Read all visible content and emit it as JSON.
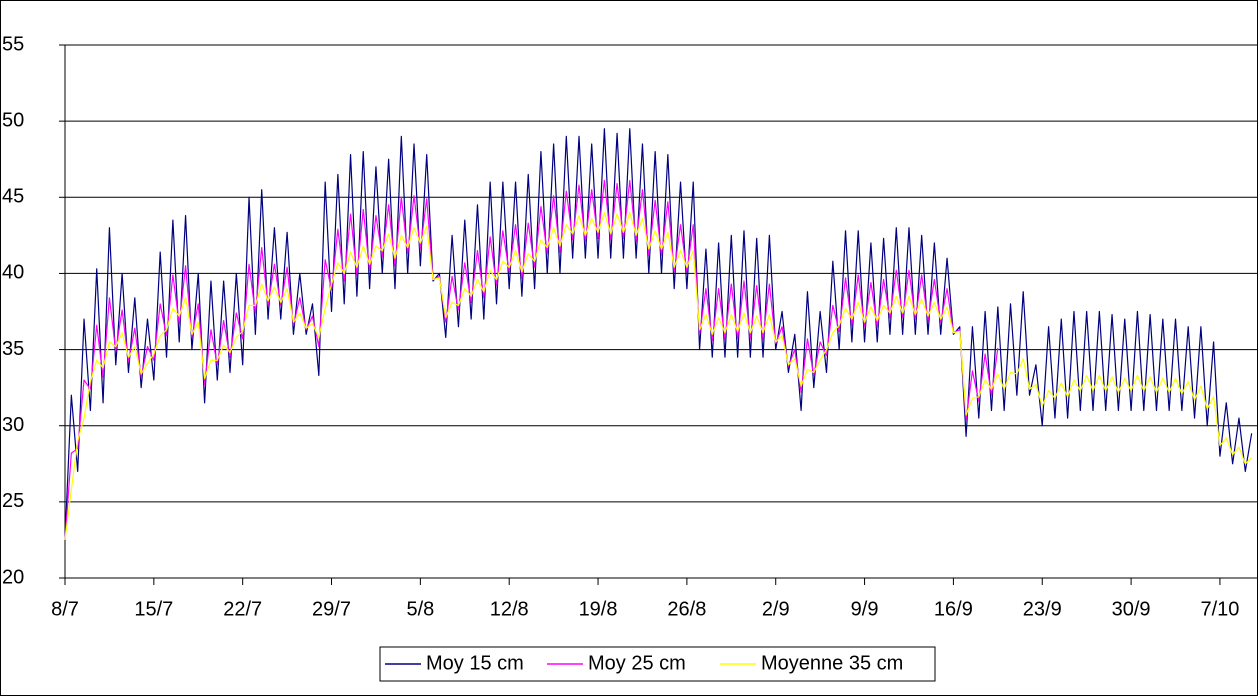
{
  "chart_data": {
    "type": "line",
    "x": [
      0,
      0.5,
      1,
      1.5,
      2,
      2.5,
      3,
      3.5,
      4,
      4.5,
      5,
      5.5,
      6,
      6.5,
      7,
      7.5,
      8,
      8.5,
      9,
      9.5,
      10,
      10.5,
      11,
      11.5,
      12,
      12.5,
      13,
      13.5,
      14,
      14.5,
      15,
      15.5,
      16,
      16.5,
      17,
      17.5,
      18,
      18.5,
      19,
      19.5,
      20,
      20.5,
      21,
      21.5,
      22,
      22.5,
      23,
      23.5,
      24,
      24.5,
      25,
      25.5,
      26,
      26.5,
      27,
      27.5,
      28,
      28.5,
      29,
      29.5,
      30,
      30.5,
      31,
      31.5,
      32,
      32.5,
      33,
      33.5,
      34,
      34.5,
      35,
      35.5,
      36,
      36.5,
      37,
      37.5,
      38,
      38.5,
      39,
      39.5,
      40,
      40.5,
      41,
      41.5,
      42,
      42.5,
      43,
      43.5,
      44,
      44.5,
      45,
      45.5,
      46,
      46.5,
      47,
      47.5,
      48,
      48.5,
      49,
      49.5,
      50,
      50.5,
      51,
      51.5,
      52,
      52.5,
      53,
      53.5,
      54,
      54.5,
      55,
      55.5,
      56,
      56.5,
      57,
      57.5,
      58,
      58.5,
      59,
      59.5,
      60,
      60.5,
      61,
      61.5,
      62,
      62.5,
      63,
      63.5,
      64,
      64.5,
      65,
      65.5,
      66,
      66.5,
      67,
      67.5,
      68,
      68.5,
      69,
      69.5,
      70,
      70.5,
      71,
      71.5,
      72,
      72.5,
      73,
      73.5,
      74,
      74.5,
      75,
      75.5,
      76,
      76.5,
      77,
      77.5,
      78,
      78.5,
      79,
      79.5,
      80,
      80.5,
      81,
      81.5,
      82,
      82.5,
      83,
      83.5,
      84,
      84.5,
      85,
      85.5,
      86,
      86.5,
      87,
      87.5,
      88,
      88.5,
      89,
      89.5,
      90,
      90.5,
      91,
      91.5,
      92,
      92.5,
      93,
      93.5
    ],
    "series": [
      {
        "name": "Moy 15 cm",
        "color": "#000080",
        "values": [
          22.5,
          32,
          27,
          37,
          31,
          40.3,
          31.5,
          43,
          34,
          40,
          33.5,
          38.4,
          32.5,
          37,
          33,
          41.4,
          34.5,
          43.5,
          35.5,
          43.8,
          35,
          40,
          31.5,
          39.5,
          33,
          39.5,
          33.5,
          40,
          34,
          45,
          36,
          45.5,
          37,
          43,
          37,
          42.7,
          36,
          40,
          36,
          38,
          33.3,
          46,
          37.5,
          46.5,
          38,
          47.8,
          38.5,
          48,
          39,
          47,
          40,
          47.5,
          39,
          49,
          40,
          48.5,
          40.5,
          47.8,
          39.5,
          40,
          35.8,
          42.5,
          36.5,
          43.5,
          37,
          44.5,
          37,
          46,
          38,
          46,
          39,
          46,
          38.5,
          46.5,
          39,
          48,
          40,
          48.5,
          40,
          49,
          41,
          49,
          41,
          48.5,
          41,
          49.5,
          41,
          49.2,
          41,
          49.5,
          41,
          48.5,
          40,
          48,
          40,
          47.8,
          39,
          46,
          39,
          46,
          35,
          41.6,
          34.5,
          42,
          34.5,
          42.5,
          34.5,
          42.8,
          34.5,
          42.3,
          34.5,
          42.5,
          35,
          37.5,
          33.5,
          36,
          31,
          38.8,
          32.5,
          37.5,
          33.5,
          40.8,
          35,
          42.8,
          35.5,
          42.8,
          35.5,
          42,
          35.5,
          42.3,
          36,
          43,
          36,
          43,
          36,
          42.5,
          36,
          42,
          36,
          41,
          36,
          36.5,
          29.3,
          36.5,
          30.5,
          37.5,
          31,
          37.8,
          31,
          38,
          32,
          38.8,
          32,
          34,
          30,
          36.5,
          30.5,
          37,
          30.5,
          37.5,
          31,
          37.5,
          31,
          37.5,
          31,
          37.3,
          31,
          37,
          31,
          37.5,
          31,
          37.3,
          31,
          37,
          31,
          37,
          31,
          36.5,
          30.5,
          36.5,
          30,
          35.5,
          28,
          31.5,
          27.5,
          30.5,
          27,
          29.5
        ]
      },
      {
        "name": "Moy 25 cm",
        "color": "#ff00ff",
        "values": [
          22.5,
          28.2,
          28.5,
          33,
          32.4,
          36.6,
          33.2,
          38.4,
          34.9,
          37.6,
          34.2,
          36.4,
          33.2,
          35.2,
          34.3,
          38,
          35.9,
          39.9,
          36.7,
          40.5,
          35.8,
          38,
          32.7,
          36.3,
          34,
          36.9,
          34.5,
          37.4,
          35.7,
          40.6,
          37.4,
          41.7,
          37.9,
          40.6,
          37.9,
          40.4,
          36.6,
          38.4,
          36.3,
          37.2,
          35.2,
          40.9,
          38.9,
          42.9,
          39.5,
          43.9,
          39.9,
          44.2,
          40.2,
          43.8,
          41.1,
          44.5,
          40.5,
          45,
          41.3,
          45.1,
          41.6,
          44.9,
          39.6,
          39.8,
          36.8,
          39.8,
          37.6,
          40.7,
          38.1,
          41.5,
          38.4,
          42.4,
          39.2,
          42.8,
          40.1,
          43.2,
          39.7,
          43.3,
          40.4,
          44.4,
          41.3,
          45.1,
          41.4,
          45.4,
          42.2,
          45.8,
          42.1,
          45.5,
          42.3,
          46.1,
          42.2,
          45.9,
          42.3,
          46.1,
          42.1,
          45.5,
          41.2,
          44.8,
          41.2,
          44.7,
          40.1,
          43.2,
          40.1,
          43.2,
          36,
          39,
          35.6,
          39,
          35.7,
          39.3,
          35.7,
          39.5,
          35.7,
          39.2,
          35.7,
          39.3,
          35.4,
          36.5,
          33.9,
          35,
          32.2,
          35.7,
          33.3,
          35.5,
          34.6,
          37.9,
          36.2,
          39.7,
          36.6,
          39.9,
          36.5,
          39.4,
          36.5,
          39.6,
          37.1,
          40.2,
          37.1,
          40.2,
          37,
          39.9,
          36.9,
          39.6,
          36.8,
          39,
          36.1,
          36.3,
          30.4,
          33.6,
          31.6,
          34.7,
          32,
          35.1,
          null,
          null,
          null,
          null,
          null,
          null,
          null,
          null,
          null,
          null,
          null,
          null,
          null,
          null,
          null,
          null,
          null,
          null,
          null,
          null,
          null,
          null,
          null,
          null,
          null,
          null,
          null,
          null,
          null,
          null,
          null,
          null,
          null,
          null,
          null,
          null,
          null,
          null,
          null,
          null
        ]
      },
      {
        "name": "Moyenne 35 cm",
        "color": "#ffff00",
        "values": [
          22.5,
          25.8,
          29,
          30.5,
          32.9,
          34.3,
          33.8,
          35.5,
          35.2,
          36.1,
          34.5,
          35.2,
          33.4,
          34.1,
          34.7,
          35.9,
          36.3,
          37.7,
          37.2,
          38.4,
          36,
          36.8,
          33.1,
          34.3,
          34.3,
          35.3,
          34.8,
          35.8,
          36.2,
          37.9,
          37.9,
          39.3,
          38.2,
          39.1,
          38.1,
          39,
          36.8,
          37.4,
          36.4,
          36.7,
          35.8,
          37.7,
          39.3,
          40.7,
          40,
          41.4,
          40.4,
          41.8,
          40.6,
          41.8,
          41.5,
          42.6,
          41,
          42.5,
          41.7,
          43,
          42,
          43.1,
          39.6,
          39.7,
          37.1,
          38.1,
          37.9,
          39,
          38.5,
          39.6,
          38.8,
          40.2,
          39.6,
          40.8,
          40.4,
          41.5,
          40.1,
          41.3,
          40.8,
          42.2,
          41.7,
          43,
          41.8,
          43.2,
          42.6,
          43.8,
          42.5,
          43.6,
          42.7,
          44,
          42.6,
          43.9,
          42.7,
          44,
          42.5,
          43.6,
          41.6,
          42.8,
          41.6,
          42.7,
          40.4,
          41.5,
          40.4,
          41.5,
          36.3,
          37.3,
          36,
          37.1,
          36.1,
          37.3,
          36.2,
          37.4,
          36.1,
          37.2,
          36.1,
          37.3,
          35.5,
          35.9,
          34,
          34.4,
          32.6,
          33.7,
          33.5,
          34.3,
          35,
          36.1,
          36.6,
          37.7,
          37,
          38.1,
          36.8,
          37.8,
          36.9,
          37.9,
          37.4,
          38.5,
          37.4,
          38.5,
          37.3,
          38.3,
          37.2,
          38.1,
          37,
          37.8,
          36.1,
          36.2,
          30.7,
          31.8,
          31.9,
          33,
          32.4,
          33.4,
          32.4,
          33.5,
          33.4,
          34.4,
          32.4,
          32.7,
          31.3,
          32.3,
          31.8,
          32.8,
          31.9,
          33,
          32.3,
          33.3,
          32.3,
          33.3,
          32.3,
          33.2,
          32.2,
          33.1,
          32.3,
          33.3,
          32.3,
          33.2,
          32.2,
          33.1,
          32.2,
          33.1,
          32.1,
          32.9,
          31.7,
          32.6,
          31.1,
          31.9,
          28.7,
          29.2,
          28.1,
          28.6,
          27.5,
          27.9
        ]
      }
    ],
    "xlim": [
      0,
      94
    ],
    "xticks": [
      {
        "value": 0,
        "label": "8/7"
      },
      {
        "value": 7,
        "label": "15/7"
      },
      {
        "value": 14,
        "label": "22/7"
      },
      {
        "value": 21,
        "label": "29/7"
      },
      {
        "value": 28,
        "label": "5/8"
      },
      {
        "value": 35,
        "label": "12/8"
      },
      {
        "value": 42,
        "label": "19/8"
      },
      {
        "value": 49,
        "label": "26/8"
      },
      {
        "value": 56,
        "label": "2/9"
      },
      {
        "value": 63,
        "label": "9/9"
      },
      {
        "value": 70,
        "label": "16/9"
      },
      {
        "value": 77,
        "label": "23/9"
      },
      {
        "value": 84,
        "label": "30/9"
      },
      {
        "value": 91,
        "label": "7/10"
      }
    ],
    "ylim": [
      20,
      55
    ],
    "yticks": [
      20,
      25,
      30,
      35,
      40,
      45,
      50,
      55
    ],
    "grid": true,
    "legend": "bottom"
  }
}
